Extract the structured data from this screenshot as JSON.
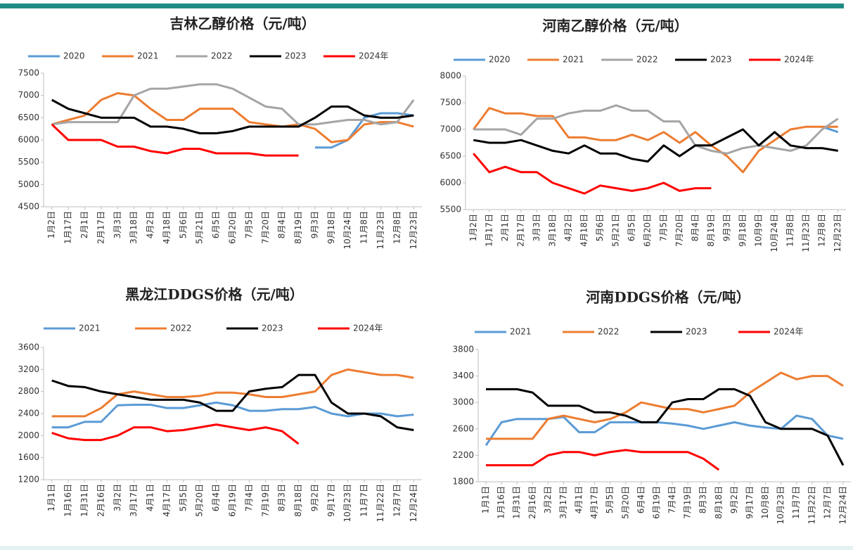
{
  "chart_data": [
    {
      "type": "line",
      "title": "吉林乙醇价格（元/吨）",
      "legend": "top",
      "categories": [
        "1月2日",
        "1月17日",
        "2月1日",
        "2月17日",
        "3月3日",
        "3月18日",
        "4月2日",
        "4月18日",
        "5月6日",
        "5月21日",
        "6月5日",
        "6月20日",
        "7月5日",
        "7月20日",
        "8月4日",
        "8月19日",
        "9月3日",
        "9月18日",
        "10月24日",
        "11月8日",
        "11月23日",
        "12月8日",
        "12月23日"
      ],
      "ylim": [
        4500,
        7500
      ],
      "yticks": [
        4500,
        5000,
        5500,
        6000,
        6500,
        7000,
        7500
      ],
      "series": [
        {
          "name": "2020",
          "color": "#5b9bd5",
          "values": [
            null,
            null,
            null,
            null,
            null,
            null,
            null,
            null,
            null,
            null,
            null,
            null,
            null,
            null,
            null,
            null,
            5830,
            5830,
            6000,
            6500,
            6600,
            6600,
            6550
          ]
        },
        {
          "name": "2021",
          "color": "#ed7d31",
          "values": [
            6350,
            6450,
            6550,
            6900,
            7050,
            7000,
            6700,
            6450,
            6450,
            6700,
            6700,
            6700,
            6400,
            6350,
            6300,
            6350,
            6250,
            5950,
            6000,
            6350,
            6400,
            6400,
            6300
          ]
        },
        {
          "name": "2022",
          "color": "#a5a5a5",
          "values": [
            6350,
            6400,
            6400,
            6400,
            6400,
            7000,
            7150,
            7150,
            7200,
            7250,
            7250,
            7150,
            6950,
            6750,
            6700,
            6350,
            6350,
            6400,
            6450,
            6450,
            6350,
            6400,
            6900
          ]
        },
        {
          "name": "2023",
          "color": "#000000",
          "values": [
            6900,
            6700,
            6600,
            6500,
            6500,
            6500,
            6300,
            6300,
            6250,
            6150,
            6150,
            6200,
            6300,
            6300,
            6300,
            6300,
            6500,
            6750,
            6750,
            6550,
            6500,
            6500,
            6550
          ]
        },
        {
          "name": "2024年",
          "color": "#ff0000",
          "values": [
            6350,
            6000,
            6000,
            6000,
            5850,
            5850,
            5750,
            5700,
            5800,
            5800,
            5700,
            5700,
            5700,
            5650,
            5650,
            5650,
            null,
            null,
            null,
            null,
            null,
            null,
            null
          ]
        }
      ]
    },
    {
      "type": "line",
      "title": "河南乙醇价格（元/吨）",
      "legend": "top",
      "categories": [
        "1月2日",
        "1月17日",
        "2月1日",
        "2月17日",
        "3月3日",
        "3月18日",
        "4月2日",
        "4月18日",
        "5月6日",
        "5月21日",
        "6月5日",
        "6月20日",
        "7月5日",
        "7月20日",
        "8月4日",
        "8月19日",
        "9月3日",
        "9月18日",
        "10月9日",
        "10月24日",
        "11月8日",
        "11月23日",
        "12月8日",
        "12月23日"
      ],
      "ylim": [
        5500,
        8000
      ],
      "yticks": [
        5500,
        6000,
        6500,
        7000,
        7500,
        8000
      ],
      "series": [
        {
          "name": "2020",
          "color": "#5b9bd5",
          "values": [
            null,
            null,
            null,
            null,
            null,
            null,
            null,
            null,
            null,
            null,
            null,
            null,
            null,
            null,
            null,
            null,
            null,
            null,
            null,
            null,
            null,
            null,
            7050,
            6950
          ]
        },
        {
          "name": "2021",
          "color": "#ed7d31",
          "values": [
            7000,
            7400,
            7300,
            7300,
            7250,
            7250,
            6850,
            6850,
            6800,
            6800,
            6900,
            6800,
            6950,
            6750,
            6950,
            6700,
            6500,
            6200,
            6600,
            6800,
            7000,
            7050,
            7050,
            7050
          ]
        },
        {
          "name": "2022",
          "color": "#a5a5a5",
          "values": [
            7000,
            7000,
            7000,
            6900,
            7200,
            7200,
            7300,
            7350,
            7350,
            7450,
            7350,
            7350,
            7150,
            7150,
            6700,
            6600,
            6550,
            6650,
            6700,
            6650,
            6600,
            6700,
            7000,
            7200
          ]
        },
        {
          "name": "2023",
          "color": "#000000",
          "values": [
            6800,
            6750,
            6750,
            6800,
            6700,
            6600,
            6550,
            6700,
            6550,
            6550,
            6450,
            6400,
            6700,
            6500,
            6700,
            6700,
            6850,
            7000,
            6700,
            6950,
            6700,
            6650,
            6650,
            6600
          ]
        },
        {
          "name": "2024年",
          "color": "#ff0000",
          "values": [
            6550,
            6200,
            6300,
            6200,
            6200,
            6000,
            5900,
            5800,
            5950,
            5900,
            5850,
            5900,
            6000,
            5850,
            5900,
            5900,
            null,
            null,
            null,
            null,
            null,
            null,
            null,
            null
          ]
        }
      ]
    },
    {
      "type": "line",
      "title": "黑龙江DDGS价格（元/吨）",
      "legend": "top",
      "categories": [
        "1月1日",
        "1月16日",
        "1月31日",
        "2月16日",
        "3月2日",
        "3月17日",
        "4月1日",
        "4月17日",
        "5月5日",
        "5月20日",
        "6月4日",
        "6月19日",
        "7月4日",
        "7月19日",
        "8月3日",
        "8月18日",
        "9月2日",
        "9月17日",
        "10月23日",
        "11月7日",
        "11月22日",
        "12月7日",
        "12月24日"
      ],
      "ylim": [
        1200,
        3600
      ],
      "yticks": [
        1200,
        1600,
        2000,
        2400,
        2800,
        3200,
        3600
      ],
      "series": [
        {
          "name": "2021",
          "color": "#5b9bd5",
          "values": [
            2150,
            2150,
            2250,
            2250,
            2550,
            2560,
            2560,
            2500,
            2500,
            2550,
            2600,
            2550,
            2450,
            2450,
            2480,
            2480,
            2520,
            2400,
            2350,
            2400,
            2400,
            2350,
            2380
          ]
        },
        {
          "name": "2022",
          "color": "#ed7d31",
          "values": [
            2350,
            2350,
            2350,
            2500,
            2750,
            2800,
            2750,
            2700,
            2700,
            2720,
            2780,
            2780,
            2750,
            2700,
            2700,
            2750,
            2800,
            3100,
            3200,
            3150,
            3100,
            3100,
            3050
          ]
        },
        {
          "name": "2023",
          "color": "#000000",
          "values": [
            3000,
            2900,
            2880,
            2800,
            2750,
            2700,
            2650,
            2650,
            2650,
            2600,
            2450,
            2450,
            2800,
            2850,
            2880,
            3100,
            3100,
            2600,
            2400,
            2400,
            2350,
            2150,
            2100
          ]
        },
        {
          "name": "2024年",
          "color": "#ff0000",
          "values": [
            2050,
            1950,
            1920,
            1920,
            2000,
            2150,
            2150,
            2080,
            2100,
            2150,
            2200,
            2150,
            2100,
            2150,
            2080,
            1850,
            null,
            null,
            null,
            null,
            null,
            null,
            null
          ]
        }
      ]
    },
    {
      "type": "line",
      "title": "河南DDGS价格（元/吨）",
      "legend": "top",
      "categories": [
        "1月1日",
        "1月16日",
        "1月31日",
        "2月16日",
        "3月2日",
        "3月17日",
        "4月1日",
        "4月17日",
        "5月5日",
        "5月20日",
        "6月4日",
        "6月19日",
        "7月4日",
        "7月19日",
        "8月3日",
        "8月18日",
        "9月2日",
        "9月17日",
        "10月8日",
        "10月23日",
        "11月7日",
        "11月22日",
        "12月7日",
        "12月24日"
      ],
      "ylim": [
        1800,
        3800
      ],
      "yticks": [
        1800,
        2200,
        2600,
        3000,
        3400,
        3800
      ],
      "series": [
        {
          "name": "2021",
          "color": "#5b9bd5",
          "values": [
            2350,
            2700,
            2750,
            2750,
            2750,
            2780,
            2550,
            2550,
            2700,
            2700,
            2700,
            2700,
            2680,
            2650,
            2600,
            2650,
            2700,
            2650,
            2620,
            2600,
            2800,
            2750,
            2500,
            2450
          ]
        },
        {
          "name": "2022",
          "color": "#ed7d31",
          "values": [
            2450,
            2450,
            2450,
            2450,
            2750,
            2800,
            2750,
            2700,
            2750,
            2850,
            3000,
            2950,
            2900,
            2900,
            2850,
            2900,
            2950,
            3150,
            3300,
            3450,
            3350,
            3400,
            3400,
            3250
          ]
        },
        {
          "name": "2023",
          "color": "#000000",
          "values": [
            3200,
            3200,
            3200,
            3150,
            2950,
            2950,
            2950,
            2850,
            2850,
            2800,
            2700,
            2700,
            3000,
            3050,
            3050,
            3200,
            3200,
            3100,
            2700,
            2600,
            2600,
            2600,
            2500,
            2050
          ]
        },
        {
          "name": "2024年",
          "color": "#ff0000",
          "values": [
            2050,
            2050,
            2050,
            2050,
            2200,
            2250,
            2250,
            2200,
            2250,
            2280,
            2250,
            2250,
            2250,
            2250,
            2150,
            1980,
            null,
            null,
            null,
            null,
            null,
            null,
            null,
            null
          ]
        }
      ]
    }
  ]
}
